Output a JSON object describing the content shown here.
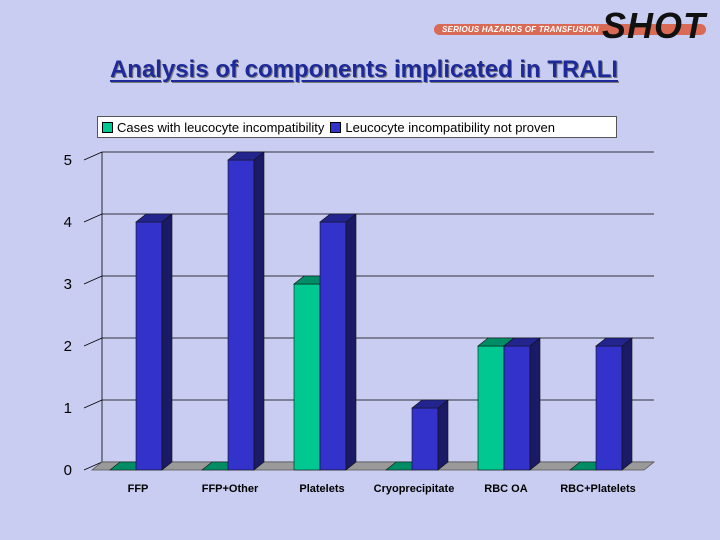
{
  "logo": {
    "tagline": "SERIOUS HAZARDS OF TRANSFUSION",
    "wordmark": "SHOT"
  },
  "slide": {
    "title": "Analysis of components implicated in TRALI"
  },
  "colors": {
    "background": "#c9cdf1",
    "series1": "#00c890",
    "series2": "#3333cc",
    "title": "#1e2a9a",
    "logo_bar": "#d96a55"
  },
  "chart_data": {
    "type": "bar",
    "title": "",
    "xlabel": "",
    "ylabel": "",
    "categories": [
      "FFP",
      "FFP+Other",
      "Platelets",
      "Cryoprecipitate",
      "RBC OA",
      "RBC+Platelets"
    ],
    "series": [
      {
        "name": "Cases with leucocyte incompatibility",
        "values": [
          0,
          0,
          3,
          0,
          2,
          0
        ],
        "color": "#00c890"
      },
      {
        "name": "Leucocyte incompatibility not proven",
        "values": [
          4,
          5,
          4,
          1,
          2,
          2
        ],
        "color": "#3333cc"
      }
    ],
    "ylim": [
      0,
      5
    ],
    "yticks": [
      0,
      1,
      2,
      3,
      4,
      5
    ],
    "grid": true,
    "legend_position": "top",
    "style": "3d"
  }
}
